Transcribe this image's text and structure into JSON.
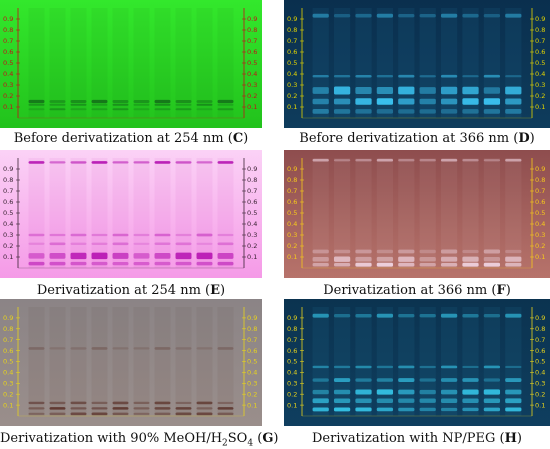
{
  "panels": [
    {
      "key": "C",
      "caption_pre": "Before derivatization at 254 nm (",
      "caption_letter": "C",
      "caption_post": ")",
      "bg_top": "#33e82c",
      "bg_bottom": "#22c21c",
      "scale_color": "#c0141a",
      "band_color": "#0f5a17",
      "tracks": 10,
      "bands": [
        {
          "rf": 0.15,
          "h": 0.025,
          "o": 0.7
        },
        {
          "rf": 0.12,
          "h": 0.015,
          "o": 0.5
        },
        {
          "rf": 0.08,
          "h": 0.012,
          "o": 0.4
        }
      ]
    },
    {
      "key": "D",
      "caption_pre": "Before derivatization at 366 nm (",
      "caption_letter": "D",
      "caption_post": ")",
      "bg_top": "#0a2f4e",
      "bg_bottom": "#0e3c5c",
      "scale_color": "#e2d400",
      "band_color": "#3fd0ff",
      "tracks": 10,
      "bands": [
        {
          "rf": 0.93,
          "h": 0.03,
          "o": 0.45
        },
        {
          "rf": 0.38,
          "h": 0.02,
          "o": 0.55
        },
        {
          "rf": 0.25,
          "h": 0.06,
          "o": 0.8
        },
        {
          "rf": 0.15,
          "h": 0.05,
          "o": 0.9
        },
        {
          "rf": 0.06,
          "h": 0.04,
          "o": 0.6
        }
      ]
    },
    {
      "key": "E",
      "caption_pre": "Derivatization at 254 nm (",
      "caption_letter": "E",
      "caption_post": ")",
      "bg_top": "#fbd2f6",
      "bg_bottom": "#f59ae7",
      "scale_color": "#3a2333",
      "band_color": "#b40fb0",
      "tracks": 10,
      "bands": [
        {
          "rf": 0.96,
          "h": 0.02,
          "o": 0.9
        },
        {
          "rf": 0.3,
          "h": 0.02,
          "o": 0.45
        },
        {
          "rf": 0.22,
          "h": 0.02,
          "o": 0.35
        },
        {
          "rf": 0.11,
          "h": 0.05,
          "o": 0.9
        },
        {
          "rf": 0.04,
          "h": 0.03,
          "o": 0.85
        }
      ]
    },
    {
      "key": "F",
      "caption_pre": "Derivatization at 366 nm (",
      "caption_letter": "F",
      "caption_post": ")",
      "bg_top": "#8e4d4e",
      "bg_bottom": "#b7736b",
      "scale_color": "#f6c91b",
      "band_color": "#f1d6e4",
      "tracks": 10,
      "bands": [
        {
          "rf": 0.98,
          "h": 0.02,
          "o": 0.6
        },
        {
          "rf": 0.15,
          "h": 0.03,
          "o": 0.45
        },
        {
          "rf": 0.08,
          "h": 0.04,
          "o": 0.7
        },
        {
          "rf": 0.03,
          "h": 0.03,
          "o": 0.95
        }
      ]
    },
    {
      "key": "G",
      "caption_pre": "Derivatization with 90% MeOH/H",
      "caption_sub": "2",
      "caption_mid": "SO",
      "caption_sub2": "4",
      "caption_post_pre": " (",
      "caption_letter": "G",
      "caption_post": ")",
      "bg_top": "#8b8486",
      "bg_bottom": "#9a8e8b",
      "scale_color": "#e7d31c",
      "band_color": "#4b1a10",
      "tracks": 10,
      "bands": [
        {
          "rf": 0.62,
          "h": 0.02,
          "o": 0.25
        },
        {
          "rf": 0.12,
          "h": 0.02,
          "o": 0.6
        },
        {
          "rf": 0.07,
          "h": 0.02,
          "o": 0.7
        },
        {
          "rf": 0.02,
          "h": 0.02,
          "o": 0.6
        }
      ]
    },
    {
      "key": "H",
      "caption_pre": "Derivatization with NP/PEG (",
      "caption_letter": "H",
      "caption_post": ")",
      "bg_top": "#0b3350",
      "bg_bottom": "#0f3e5f",
      "scale_color": "#e7d31c",
      "band_color": "#3cdcff",
      "tracks": 10,
      "bands": [
        {
          "rf": 0.92,
          "h": 0.03,
          "o": 0.55
        },
        {
          "rf": 0.45,
          "h": 0.02,
          "o": 0.55
        },
        {
          "rf": 0.33,
          "h": 0.03,
          "o": 0.6
        },
        {
          "rf": 0.22,
          "h": 0.04,
          "o": 0.8
        },
        {
          "rf": 0.14,
          "h": 0.04,
          "o": 0.9
        },
        {
          "rf": 0.06,
          "h": 0.03,
          "o": 0.8
        }
      ]
    }
  ],
  "scale_ticks": [
    "0.9",
    "0.8",
    "0.7",
    "0.6",
    "0.5",
    "0.4",
    "0.3",
    "0.2",
    "0.1"
  ]
}
